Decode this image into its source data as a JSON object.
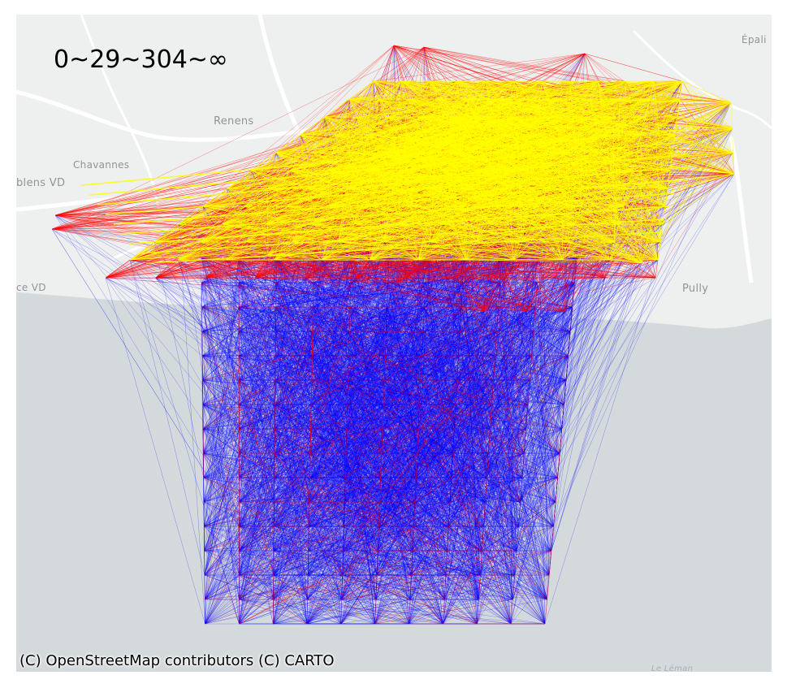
{
  "map": {
    "title": "0~29~304~∞",
    "attribution": "(C) OpenStreetMap contributors (C) CARTO",
    "places": {
      "renens": "Renens",
      "chavannes": "Chavannes",
      "ecublens": "blens VD",
      "preverenges": "ce VD",
      "pully": "Pully",
      "epalinges": "Épali",
      "lake": "Le Léman"
    },
    "colors": {
      "land": "#eef0f0",
      "water": "#d4dadc",
      "roads": "#ffffff",
      "bin_low": "#ffff00",
      "bin_mid": "#ff0000",
      "bin_high": "#0000ff"
    },
    "thresholds": [
      "0",
      "29",
      "304",
      "∞"
    ]
  }
}
